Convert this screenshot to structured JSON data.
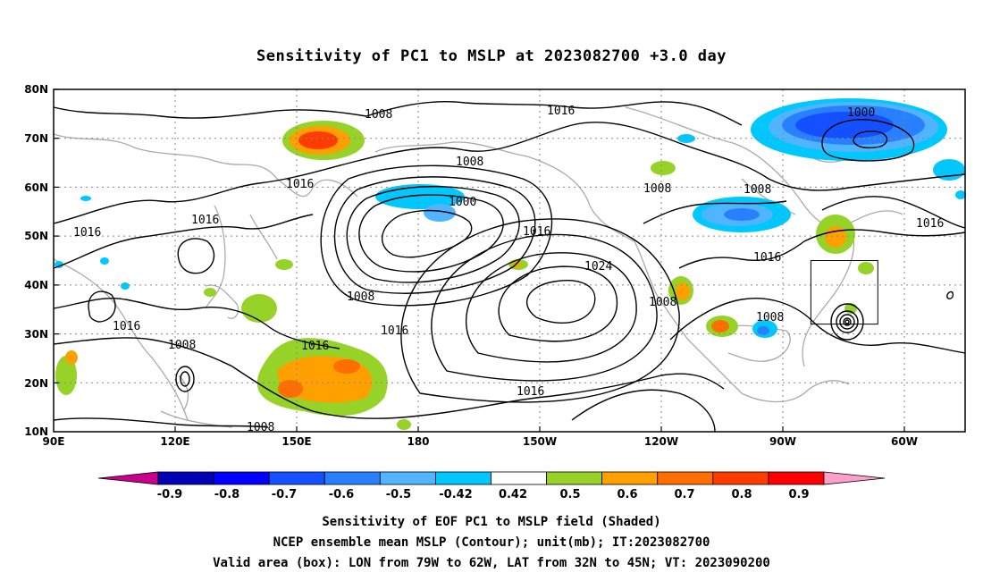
{
  "title": "Sensitivity of PC1 to MSLP at 2023082700 +3.0 day",
  "lat_labels": [
    "80N",
    "70N",
    "60N",
    "50N",
    "40N",
    "30N",
    "20N",
    "10N"
  ],
  "lon_labels": [
    "90E",
    "120E",
    "150E",
    "180",
    "150W",
    "120W",
    "90W",
    "60W"
  ],
  "contour_labels": [
    "1008",
    "1016",
    "1000",
    "1008",
    "1016",
    "1016",
    "1016",
    "1000",
    "1016",
    "1024",
    "1008",
    "1008",
    "1008",
    "1016",
    "1008",
    "1016",
    "1016",
    "1008",
    "1016",
    "1008",
    "1016",
    "1016"
  ],
  "colorbar_labels": [
    "-0.9",
    "-0.8",
    "-0.7",
    "-0.6",
    "-0.5",
    "-0.42",
    "0.42",
    "0.5",
    "0.6",
    "0.7",
    "0.8",
    "0.9"
  ],
  "colorbar_colors": [
    "#0000b4",
    "#0000ff",
    "#1450ff",
    "#2880ff",
    "#50b4ff",
    "#00c8ff",
    "#ffffff",
    "#96d228",
    "#ffa000",
    "#ff6e00",
    "#ff3c00",
    "#ff0000"
  ],
  "colorbar_ends": {
    "left": "#c8008c",
    "right": "#ffa0c8"
  },
  "captions": [
    "Sensitivity of EOF PC1 to MSLP field (Shaded)",
    "NCEP ensemble mean MSLP (Contour); unit(mb); IT:2023082700",
    "Valid area (box): LON from 79W to 62W, LAT from 32N to 45N; VT: 2023090200"
  ],
  "valid_box": {
    "lon_min": -79,
    "lon_max": -62,
    "lat_min": 32,
    "lat_max": 45
  }
}
